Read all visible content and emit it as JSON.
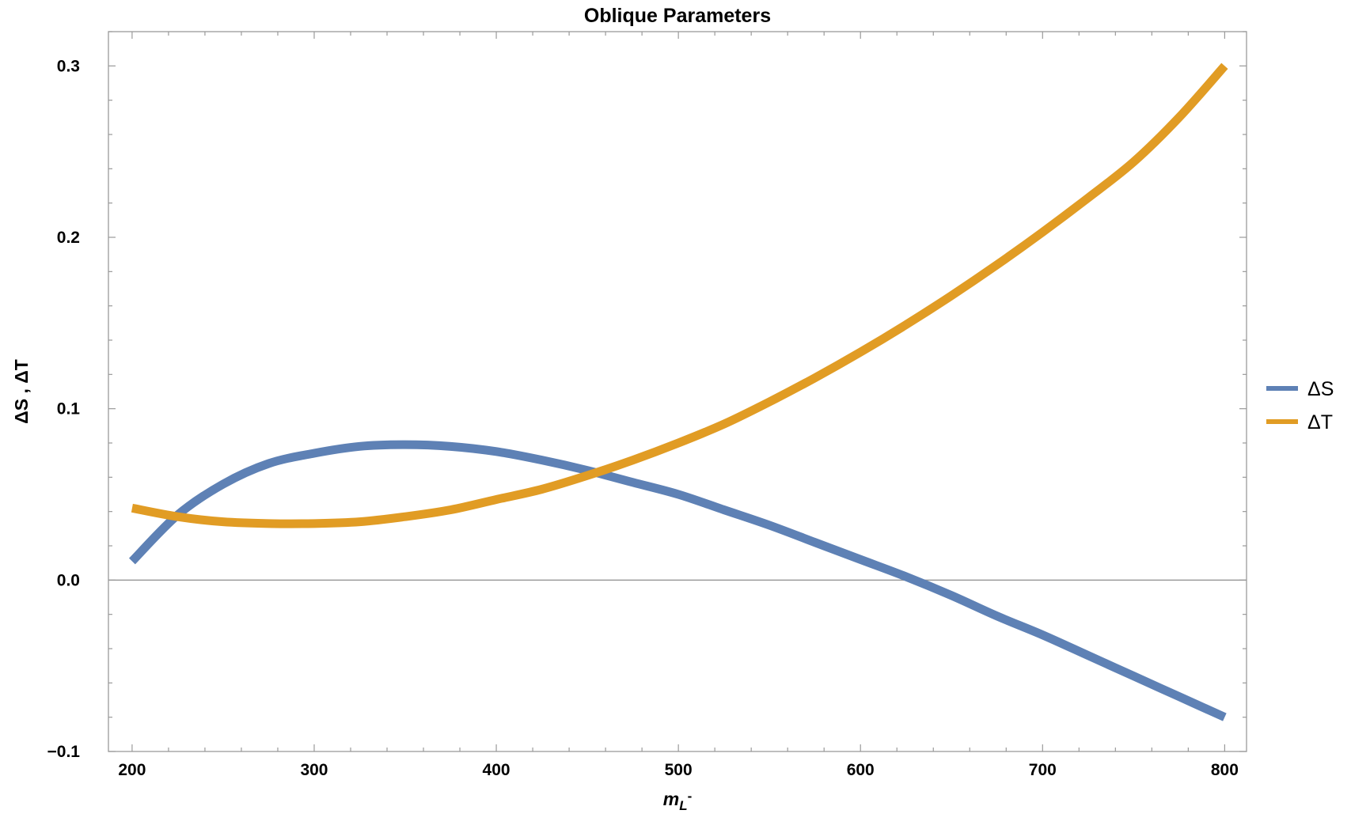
{
  "chart_data": {
    "type": "line",
    "title": "Oblique Parameters",
    "xlabel_main": "m",
    "xlabel_sub": "L",
    "xlabel_sup": "-",
    "ylabel": "ΔS , ΔT",
    "xlim": [
      187,
      812
    ],
    "ylim": [
      -0.1,
      0.32
    ],
    "xticks": [
      200,
      300,
      400,
      500,
      600,
      700,
      800
    ],
    "xtick_labels": [
      "200",
      "300",
      "400",
      "500",
      "600",
      "700",
      "800"
    ],
    "yticks": [
      -0.1,
      0.0,
      0.1,
      0.2,
      0.3
    ],
    "ytick_labels": [
      "−0.1",
      "0.0",
      "0.1",
      "0.2",
      "0.3"
    ],
    "zero_line": true,
    "grid": false,
    "legend_position": "right",
    "series": [
      {
        "name": "ΔS",
        "color": "#5E81B5",
        "x": [
          200,
          225,
          250,
          275,
          300,
          325,
          350,
          375,
          400,
          425,
          450,
          475,
          500,
          525,
          550,
          575,
          600,
          625,
          650,
          675,
          700,
          725,
          750,
          775,
          800
        ],
        "y": [
          0.011,
          0.038,
          0.056,
          0.068,
          0.074,
          0.078,
          0.079,
          0.078,
          0.075,
          0.07,
          0.064,
          0.057,
          0.05,
          0.041,
          0.032,
          0.022,
          0.012,
          0.002,
          -0.009,
          -0.021,
          -0.032,
          -0.044,
          -0.056,
          -0.068,
          -0.08
        ]
      },
      {
        "name": "ΔT",
        "color": "#E19C24",
        "x": [
          200,
          225,
          250,
          275,
          300,
          325,
          350,
          375,
          400,
          425,
          450,
          475,
          500,
          525,
          550,
          575,
          600,
          625,
          650,
          675,
          700,
          725,
          750,
          775,
          800
        ],
        "y": [
          0.042,
          0.037,
          0.034,
          0.033,
          0.033,
          0.034,
          0.037,
          0.041,
          0.047,
          0.053,
          0.061,
          0.07,
          0.08,
          0.091,
          0.104,
          0.118,
          0.133,
          0.149,
          0.166,
          0.184,
          0.203,
          0.223,
          0.244,
          0.27,
          0.3
        ]
      }
    ]
  }
}
